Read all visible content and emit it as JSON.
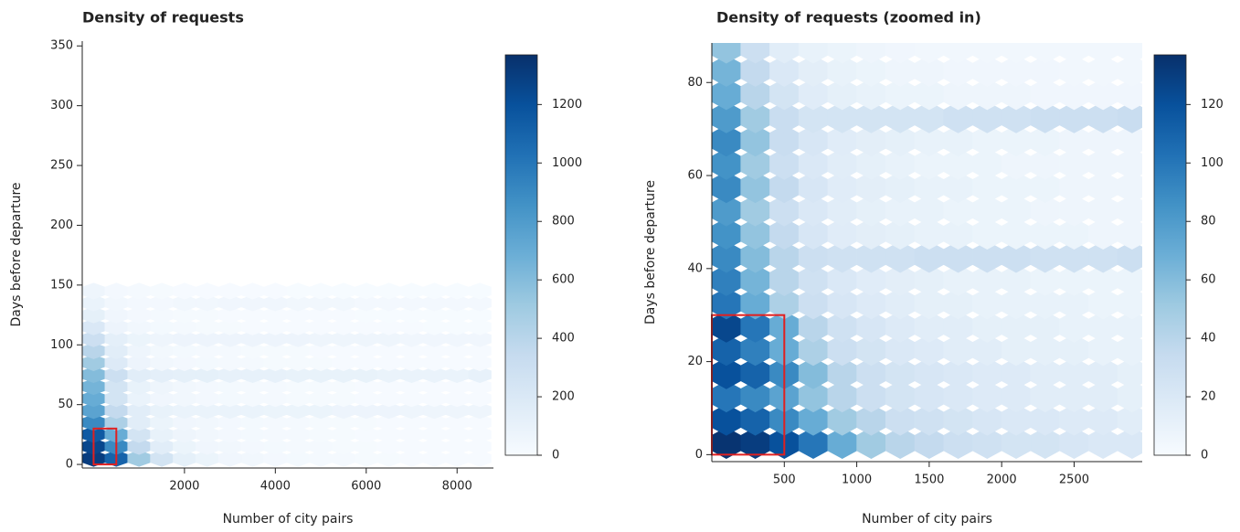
{
  "chart_data": [
    {
      "type": "hexbin",
      "title": "Density of requests",
      "x_label": "Number of city pairs",
      "y_label": "Days before departure",
      "xlim": [
        -250,
        8800
      ],
      "ylim": [
        -3,
        354
      ],
      "xticks": [
        2000,
        4000,
        6000,
        8000
      ],
      "yticks": [
        0,
        50,
        100,
        150,
        200,
        250,
        300,
        350
      ],
      "colormap": [
        "#f7fbff",
        "#deebf7",
        "#c6dbef",
        "#9ecae1",
        "#6baed6",
        "#4292c6",
        "#2171b5",
        "#08519c",
        "#08306b"
      ],
      "colorbar": {
        "lim": [
          0,
          1370
        ],
        "ticks": [
          0,
          200,
          400,
          600,
          800,
          1000,
          1200
        ]
      },
      "highlight_box": {
        "x": [
          0,
          500
        ],
        "y": [
          0,
          30
        ],
        "color": "#e02020"
      },
      "x_centers": [
        0,
        500,
        1000,
        1500,
        2000,
        2500,
        3000,
        3500,
        4000,
        4500,
        5000,
        5500,
        6000,
        6500,
        7000,
        7500,
        8000,
        8500
      ],
      "y_centers": [
        5,
        15,
        25,
        35,
        45,
        55,
        65,
        75,
        85,
        95,
        105,
        115,
        125,
        135,
        145
      ],
      "counts": [
        [
          1300,
          1100,
          500,
          250,
          120,
          80,
          50,
          40,
          30,
          25,
          20,
          20,
          15,
          15,
          10,
          10,
          10,
          10
        ],
        [
          1250,
          900,
          350,
          150,
          80,
          50,
          40,
          30,
          25,
          20,
          20,
          15,
          15,
          10,
          10,
          10,
          10,
          8
        ],
        [
          1150,
          700,
          250,
          100,
          60,
          40,
          30,
          25,
          20,
          20,
          15,
          15,
          10,
          10,
          10,
          8,
          8,
          8
        ],
        [
          900,
          450,
          150,
          80,
          50,
          40,
          30,
          25,
          20,
          20,
          15,
          15,
          15,
          10,
          10,
          10,
          8,
          8
        ],
        [
          750,
          350,
          150,
          100,
          90,
          90,
          90,
          90,
          80,
          80,
          80,
          70,
          70,
          70,
          60,
          60,
          60,
          60
        ],
        [
          700,
          250,
          90,
          50,
          40,
          30,
          25,
          20,
          20,
          15,
          15,
          15,
          10,
          10,
          10,
          10,
          8,
          8
        ],
        [
          650,
          250,
          100,
          60,
          40,
          30,
          25,
          20,
          20,
          15,
          15,
          15,
          10,
          10,
          10,
          10,
          8,
          8
        ],
        [
          600,
          300,
          150,
          130,
          120,
          120,
          110,
          110,
          110,
          100,
          100,
          100,
          100,
          90,
          90,
          90,
          90,
          110
        ],
        [
          500,
          180,
          70,
          40,
          30,
          25,
          20,
          20,
          15,
          15,
          15,
          10,
          10,
          10,
          10,
          8,
          8,
          8
        ],
        [
          400,
          150,
          60,
          35,
          25,
          20,
          20,
          15,
          15,
          15,
          10,
          10,
          10,
          10,
          8,
          8,
          8,
          8
        ],
        [
          300,
          130,
          80,
          60,
          70,
          70,
          70,
          70,
          70,
          70,
          60,
          60,
          60,
          60,
          50,
          50,
          50,
          50
        ],
        [
          200,
          70,
          40,
          25,
          20,
          15,
          15,
          10,
          10,
          10,
          10,
          8,
          8,
          8,
          8,
          5,
          5,
          5
        ],
        [
          120,
          50,
          30,
          20,
          15,
          15,
          10,
          10,
          10,
          8,
          8,
          8,
          5,
          5,
          5,
          5,
          5,
          5
        ],
        [
          90,
          40,
          30,
          30,
          40,
          40,
          50,
          50,
          50,
          40,
          40,
          40,
          30,
          30,
          30,
          30,
          30,
          30
        ],
        [
          60,
          30,
          20,
          15,
          10,
          10,
          8,
          8,
          8,
          5,
          5,
          5,
          5,
          5,
          5,
          5,
          5,
          5
        ]
      ]
    },
    {
      "type": "hexbin",
      "title": "Density of requests (zoomed in)",
      "x_label": "Number of city pairs",
      "y_label": "Days before departure",
      "xlim": [
        0,
        2970
      ],
      "ylim": [
        -1.5,
        88.5
      ],
      "xticks": [
        500,
        1000,
        1500,
        2000,
        2500
      ],
      "yticks": [
        0,
        20,
        40,
        60,
        80
      ],
      "colormap": [
        "#f7fbff",
        "#deebf7",
        "#c6dbef",
        "#9ecae1",
        "#6baed6",
        "#4292c6",
        "#2171b5",
        "#08519c",
        "#08306b"
      ],
      "colorbar": {
        "lim": [
          0,
          137
        ],
        "ticks": [
          0,
          20,
          40,
          60,
          80,
          100,
          120
        ]
      },
      "highlight_box": {
        "x": [
          0,
          500
        ],
        "y": [
          0,
          30
        ],
        "color": "#e02020"
      },
      "x_centers": [
        100,
        300,
        500,
        700,
        900,
        1100,
        1300,
        1500,
        1700,
        1900,
        2100,
        2300,
        2500,
        2700,
        2900
      ],
      "y_centers": [
        2.5,
        7.5,
        12.5,
        17.5,
        22.5,
        27.5,
        32.5,
        37.5,
        42.5,
        47.5,
        52.5,
        57.5,
        62.5,
        67.5,
        72.5,
        77.5,
        82.5,
        87.5
      ],
      "counts": [
        [
          135,
          130,
          120,
          100,
          70,
          50,
          40,
          35,
          30,
          28,
          25,
          25,
          22,
          20,
          20
        ],
        [
          120,
          110,
          90,
          70,
          50,
          40,
          30,
          28,
          25,
          22,
          20,
          20,
          18,
          18,
          15
        ],
        [
          100,
          90,
          75,
          55,
          40,
          30,
          25,
          22,
          20,
          18,
          18,
          15,
          15,
          15,
          12
        ],
        [
          120,
          110,
          90,
          60,
          40,
          30,
          25,
          22,
          20,
          18,
          18,
          15,
          15,
          15,
          12
        ],
        [
          110,
          95,
          70,
          45,
          30,
          25,
          20,
          18,
          15,
          15,
          12,
          12,
          12,
          10,
          10
        ],
        [
          125,
          100,
          70,
          40,
          28,
          22,
          18,
          15,
          15,
          12,
          12,
          12,
          10,
          10,
          10
        ],
        [
          100,
          70,
          45,
          30,
          22,
          18,
          15,
          12,
          12,
          10,
          10,
          10,
          10,
          8,
          8
        ],
        [
          95,
          65,
          40,
          28,
          20,
          16,
          14,
          12,
          10,
          10,
          10,
          8,
          8,
          8,
          8
        ],
        [
          90,
          60,
          40,
          30,
          28,
          28,
          28,
          30,
          30,
          30,
          30,
          28,
          28,
          28,
          30
        ],
        [
          85,
          55,
          35,
          22,
          16,
          14,
          12,
          10,
          10,
          8,
          8,
          8,
          8,
          6,
          6
        ],
        [
          80,
          50,
          30,
          20,
          15,
          12,
          10,
          10,
          8,
          8,
          8,
          6,
          6,
          6,
          6
        ],
        [
          90,
          55,
          35,
          22,
          16,
          14,
          12,
          10,
          10,
          8,
          8,
          8,
          6,
          6,
          6
        ],
        [
          85,
          50,
          30,
          20,
          15,
          12,
          10,
          8,
          8,
          8,
          6,
          6,
          6,
          6,
          6
        ],
        [
          90,
          55,
          32,
          22,
          16,
          14,
          12,
          10,
          10,
          8,
          8,
          8,
          6,
          6,
          6
        ],
        [
          80,
          50,
          32,
          25,
          25,
          25,
          25,
          25,
          28,
          28,
          28,
          30,
          30,
          30,
          32
        ],
        [
          70,
          40,
          25,
          16,
          12,
          10,
          8,
          8,
          6,
          6,
          6,
          5,
          5,
          5,
          5
        ],
        [
          65,
          35,
          20,
          14,
          10,
          8,
          6,
          6,
          5,
          5,
          5,
          5,
          4,
          4,
          4
        ],
        [
          55,
          30,
          15,
          10,
          8,
          6,
          5,
          4,
          4,
          4,
          4,
          4,
          4,
          4,
          4
        ]
      ]
    }
  ]
}
